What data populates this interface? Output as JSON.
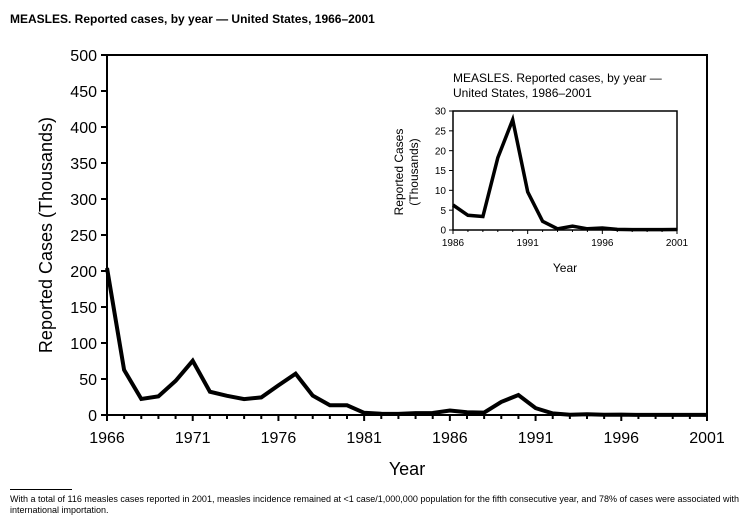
{
  "title": "MEASLES. Reported cases, by year — United States, 1966–2001",
  "footnote": "With a total of 116 measles cases reported in 2001, measles incidence remained at <1 case/1,000,000 population for the fifth consecutive year, and 78% of cases were associated with international importation.",
  "chart_data": [
    {
      "type": "line",
      "xlabel": "Year",
      "ylabel": "Reported Cases (Thousands)",
      "xlim": [
        1966,
        2001
      ],
      "ylim": [
        0,
        500
      ],
      "xticks": [
        "1966",
        "1971",
        "1976",
        "1981",
        "1986",
        "1991",
        "1996",
        "2001"
      ],
      "yticks": [
        "0",
        "50",
        "100",
        "150",
        "200",
        "250",
        "300",
        "350",
        "400",
        "450",
        "500"
      ],
      "grid": false,
      "x": [
        1966,
        1967,
        1968,
        1969,
        1970,
        1971,
        1972,
        1973,
        1974,
        1975,
        1976,
        1977,
        1978,
        1979,
        1980,
        1981,
        1982,
        1983,
        1984,
        1985,
        1986,
        1987,
        1988,
        1989,
        1990,
        1991,
        1992,
        1993,
        1994,
        1995,
        1996,
        1997,
        1998,
        1999,
        2000,
        2001
      ],
      "values": [
        204.1,
        62.7,
        22.2,
        25.8,
        47.4,
        75.3,
        32.3,
        26.7,
        22.1,
        24.4,
        41.1,
        57.3,
        26.9,
        13.6,
        13.5,
        3.1,
        1.7,
        1.5,
        2.6,
        2.8,
        6.3,
        3.7,
        3.4,
        18.2,
        27.8,
        9.6,
        2.2,
        0.3,
        0.96,
        0.31,
        0.51,
        0.14,
        0.1,
        0.1,
        0.09,
        0.12
      ]
    },
    {
      "type": "line",
      "title": "MEASLES. Reported cases, by year — United States, 1986–2001",
      "xlabel": "Year",
      "ylabel": "Reported Cases (Thousands)",
      "xlim": [
        1986,
        2001
      ],
      "ylim": [
        0,
        30
      ],
      "xticks": [
        "1986",
        "1991",
        "1996",
        "2001"
      ],
      "yticks": [
        "0",
        "5",
        "10",
        "15",
        "20",
        "25",
        "30"
      ],
      "grid": false,
      "x": [
        1986,
        1987,
        1988,
        1989,
        1990,
        1991,
        1992,
        1993,
        1994,
        1995,
        1996,
        1997,
        1998,
        1999,
        2000,
        2001
      ],
      "values": [
        6.3,
        3.7,
        3.4,
        18.2,
        27.8,
        9.6,
        2.2,
        0.3,
        0.96,
        0.31,
        0.51,
        0.14,
        0.1,
        0.1,
        0.09,
        0.12
      ]
    }
  ]
}
